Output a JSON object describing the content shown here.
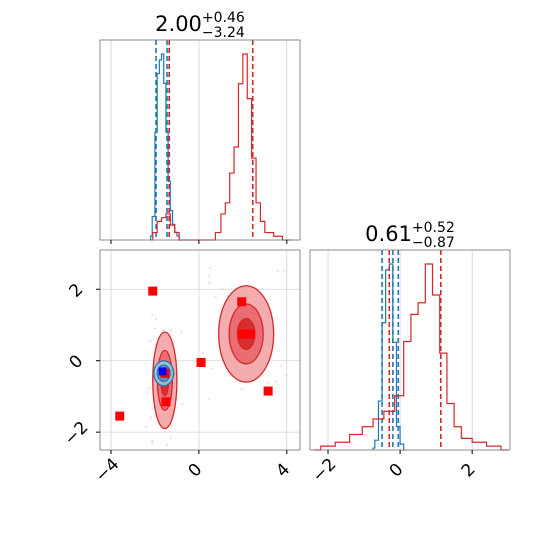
{
  "colors": {
    "blue": "#1f77b4",
    "red": "#d62728",
    "red_fill": "#f3a3a6",
    "red_fill_mid": "#e8666b",
    "marker_red": "#ff0000",
    "marker_blue": "#0000ff",
    "grid": "#d3d3d3"
  },
  "chart_data": [
    {
      "panel": "top-left",
      "type": "area",
      "title": {
        "value": "2.00",
        "plus": "+0.46",
        "minus": "−3.24"
      },
      "xlim": [
        -4.5,
        4.6
      ],
      "xticks": [
        -4,
        0,
        4
      ],
      "show_tick_labels": false,
      "grid": true,
      "series": [
        {
          "color": "blue",
          "x": [
            -2.2,
            -2.05,
            -1.95,
            -1.85,
            -1.75,
            -1.65,
            -1.55,
            -1.45,
            -1.35,
            -1.25,
            -1.15,
            -1.05,
            -0.95,
            -0.85
          ],
          "density": [
            0.02,
            0.12,
            0.55,
            0.85,
            0.92,
            0.95,
            0.8,
            0.55,
            0.3,
            0.15,
            0.08,
            0.04,
            0.02,
            0.0
          ],
          "quantiles": [
            -1.95,
            -1.45,
            -1.35
          ]
        },
        {
          "color": "red",
          "x": [
            -2.2,
            -2.0,
            -1.8,
            -1.6,
            -1.4,
            -1.2,
            -1.0,
            -0.8,
            0.6,
            0.9,
            1.1,
            1.3,
            1.5,
            1.7,
            1.9,
            2.1,
            2.3,
            2.5,
            2.7,
            2.9,
            3.1,
            3.3,
            3.5,
            3.7,
            3.9,
            4.2
          ],
          "density": [
            0.0,
            0.02,
            0.05,
            0.06,
            0.07,
            0.04,
            0.02,
            0.0,
            0.0,
            0.02,
            0.07,
            0.1,
            0.18,
            0.25,
            0.42,
            0.5,
            0.38,
            0.22,
            0.1,
            0.05,
            0.02,
            0.02,
            0.01,
            0.01,
            0.0,
            0.0
          ],
          "quantiles": [
            -1.35,
            2.45
          ]
        }
      ]
    },
    {
      "panel": "bottom-left",
      "type": "scatter",
      "xlim": [
        -4.5,
        4.6
      ],
      "ylim": [
        -2.5,
        3.1
      ],
      "xticks": [
        -4,
        0,
        4
      ],
      "yticks": [
        -2,
        0,
        2
      ],
      "grid": true,
      "red_contours": [
        {
          "cx": -1.55,
          "cy": -0.55,
          "rx": 0.55,
          "ry": 1.35
        },
        {
          "cx": 2.15,
          "cy": 0.75,
          "rx": 1.25,
          "ry": 1.35
        }
      ],
      "blue_contours": [
        {
          "cx": -1.6,
          "cy": -0.35,
          "rx": 0.45,
          "ry": 0.35
        }
      ],
      "red_markers": [
        {
          "x": -2.1,
          "y": 1.95
        },
        {
          "x": -3.6,
          "y": -1.55
        },
        {
          "x": -1.5,
          "y": -1.15
        },
        {
          "x": -1.55,
          "y": -0.35
        },
        {
          "x": 0.1,
          "y": -0.05
        },
        {
          "x": 1.95,
          "y": 1.65
        },
        {
          "x": 2.0,
          "y": 0.75
        },
        {
          "x": 2.35,
          "y": 0.75
        },
        {
          "x": 3.15,
          "y": -0.85
        }
      ],
      "blue_markers": [
        {
          "x": -1.65,
          "y": -0.3
        }
      ]
    },
    {
      "panel": "bottom-right",
      "type": "area",
      "title": {
        "value": "0.61",
        "plus": "+0.52",
        "minus": "−0.87"
      },
      "xlim": [
        -2.5,
        3.05
      ],
      "xticks": [
        -2,
        0,
        2
      ],
      "grid": true,
      "series": [
        {
          "color": "blue",
          "x": [
            -0.75,
            -0.65,
            -0.55,
            -0.45,
            -0.35,
            -0.25,
            -0.15,
            -0.05,
            0.05,
            0.15
          ],
          "density": [
            0.01,
            0.05,
            0.25,
            0.65,
            0.92,
            0.95,
            0.55,
            0.12,
            0.03,
            0.0
          ],
          "quantiles": [
            -0.5,
            -0.2,
            -0.05
          ]
        },
        {
          "color": "red",
          "x": [
            -2.4,
            -2.0,
            -1.6,
            -1.2,
            -0.9,
            -0.6,
            -0.3,
            0.0,
            0.2,
            0.4,
            0.6,
            0.8,
            1.0,
            1.2,
            1.4,
            1.6,
            1.8,
            2.2,
            2.6,
            3.0
          ],
          "density": [
            0.0,
            0.01,
            0.02,
            0.04,
            0.06,
            0.08,
            0.1,
            0.14,
            0.28,
            0.35,
            0.38,
            0.48,
            0.4,
            0.25,
            0.12,
            0.06,
            0.03,
            0.02,
            0.01,
            0.0
          ],
          "quantiles": [
            -0.3,
            1.13
          ]
        }
      ]
    }
  ]
}
